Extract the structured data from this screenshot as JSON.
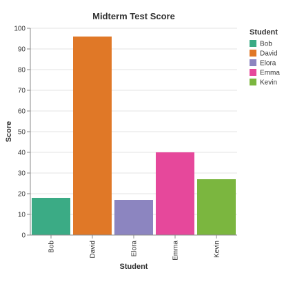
{
  "chart_data": {
    "type": "bar",
    "title": "Midterm Test Score",
    "xlabel": "Student",
    "ylabel": "Score",
    "categories": [
      "Bob",
      "David",
      "Elora",
      "Emma",
      "Kevin"
    ],
    "values": [
      18,
      96,
      17,
      40,
      27
    ],
    "ylim": [
      0,
      100
    ],
    "yticks": [
      0,
      10,
      20,
      30,
      40,
      50,
      60,
      70,
      80,
      90,
      100
    ],
    "grid": true,
    "legend": {
      "title": "Student",
      "placement": "right",
      "entries": [
        "Bob",
        "David",
        "Elora",
        "Emma",
        "Kevin"
      ]
    },
    "colors": [
      "#3bab85",
      "#e07827",
      "#8c85c0",
      "#e6489b",
      "#7bb63f"
    ]
  }
}
